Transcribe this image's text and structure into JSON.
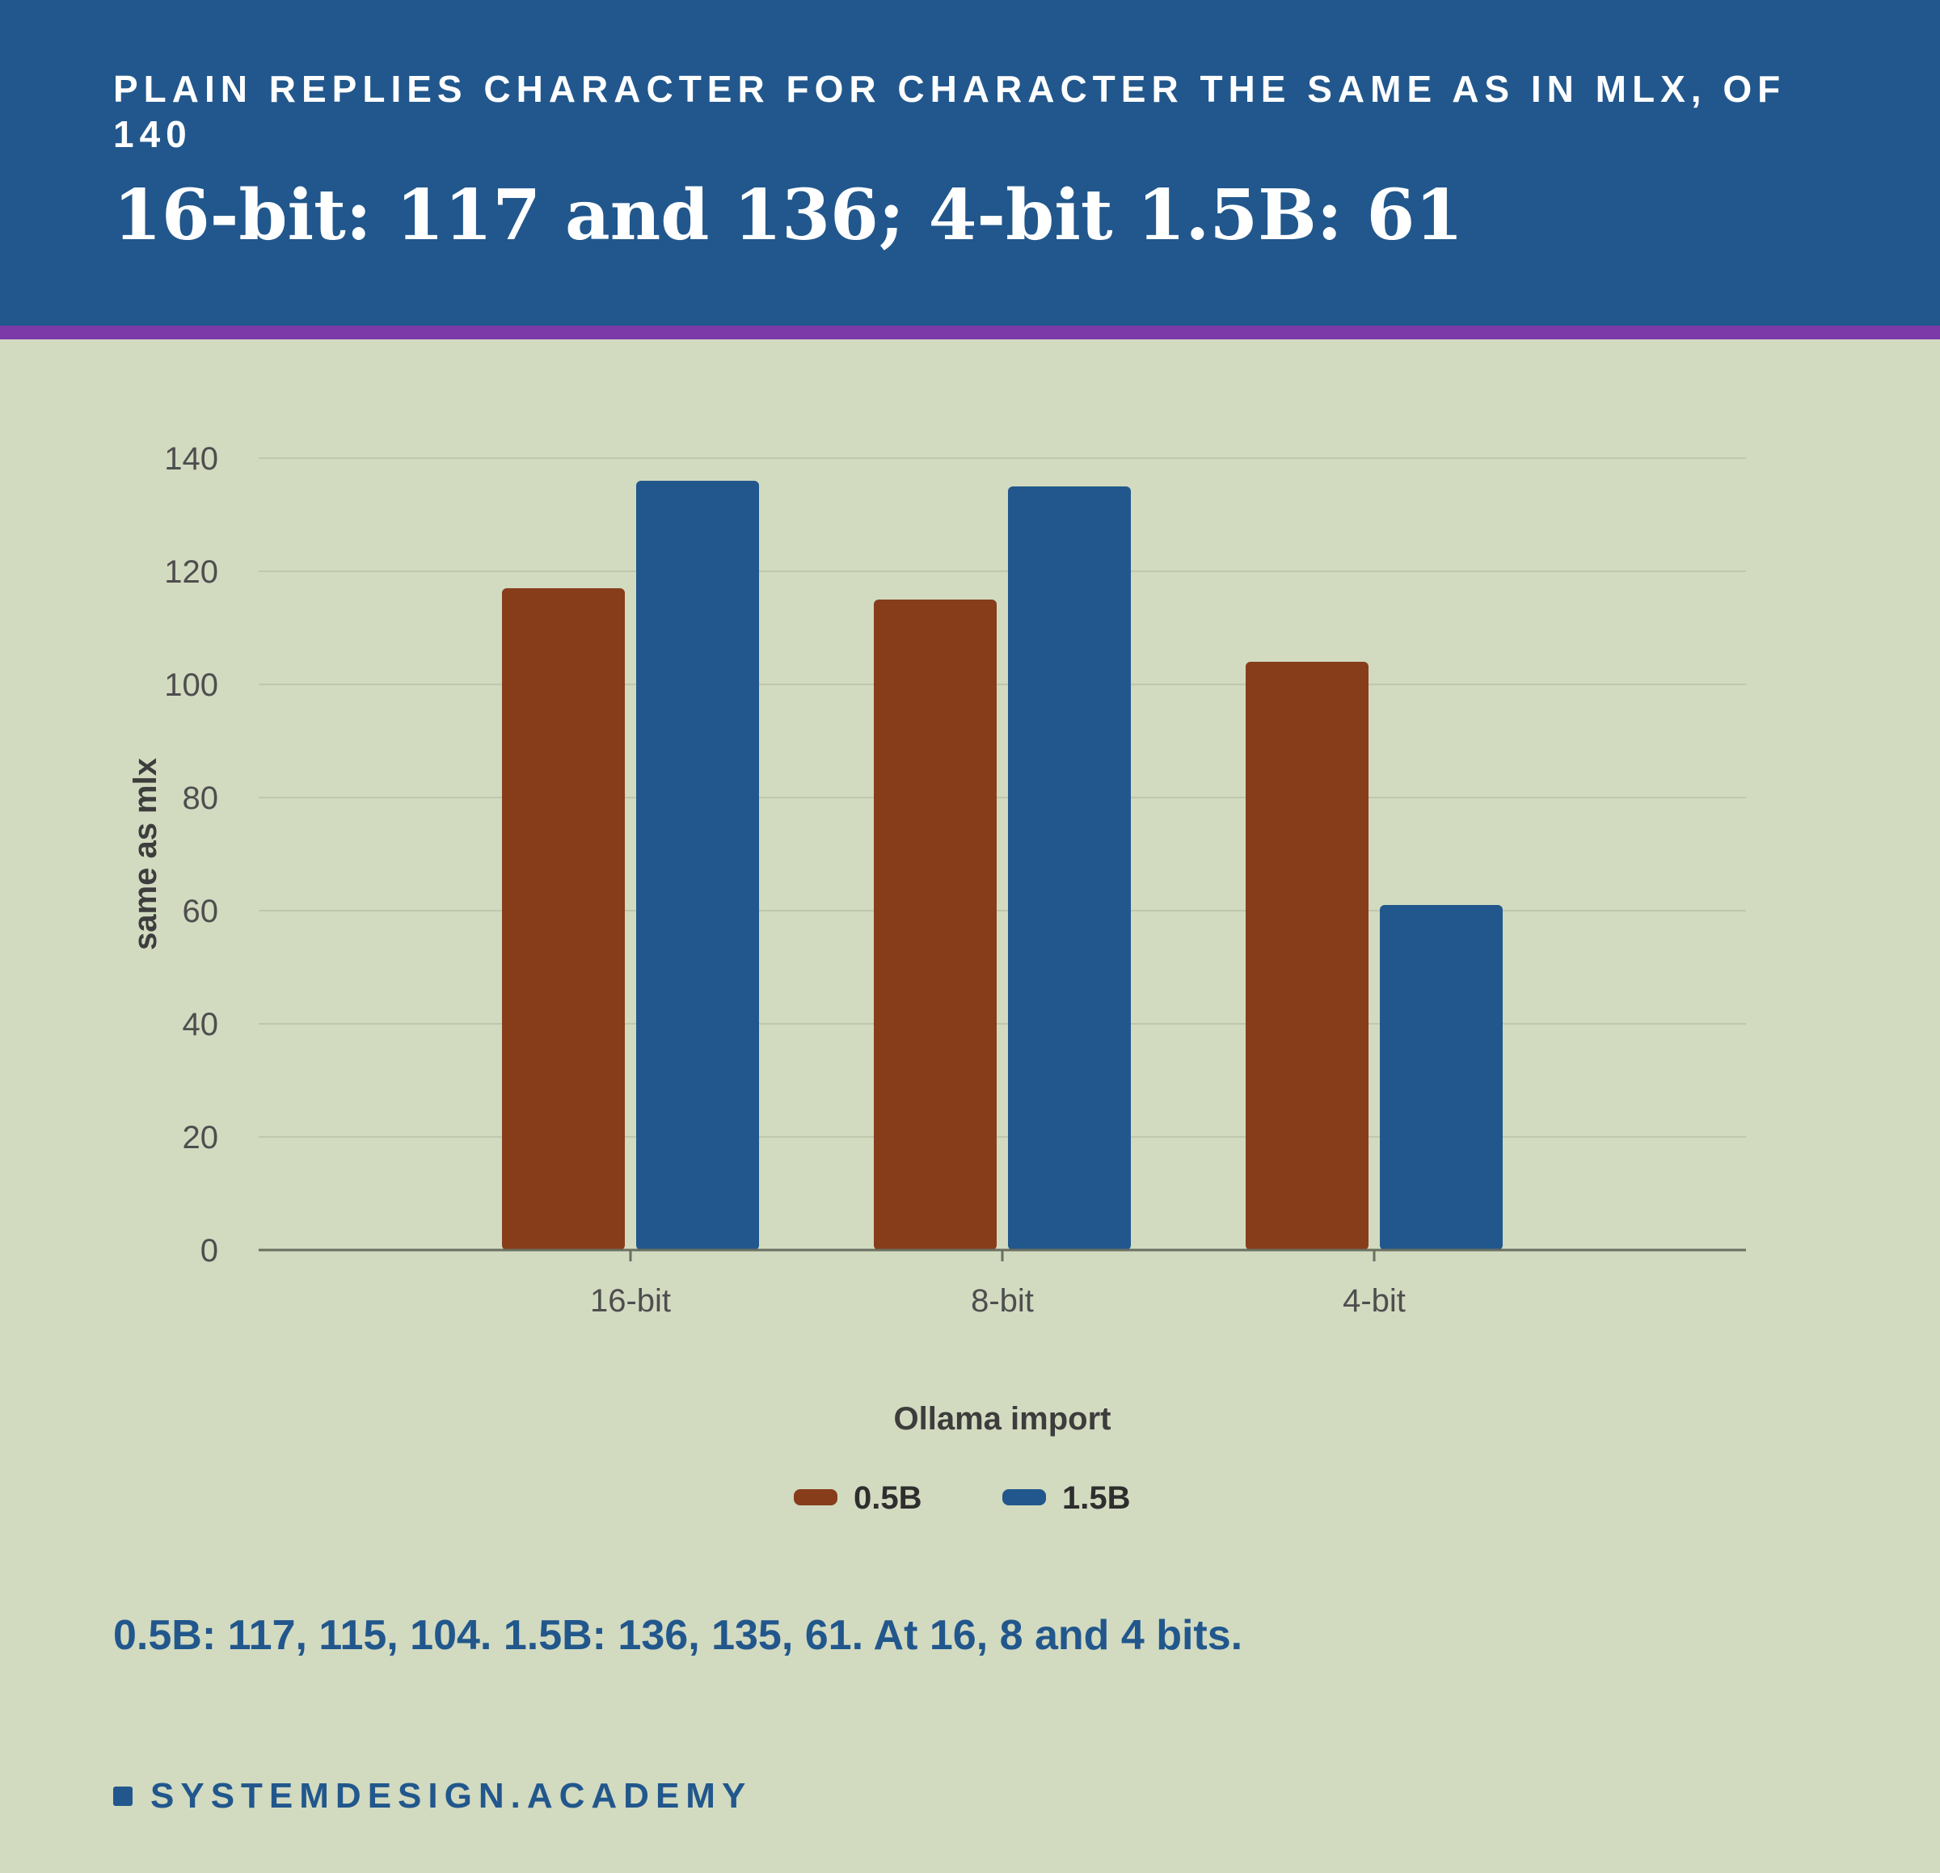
{
  "header": {
    "eyebrow": "PLAIN REPLIES CHARACTER FOR CHARACTER THE SAME AS IN MLX, OF 140",
    "headline": "16-bit: 117 and 136; 4-bit 1.5B: 61"
  },
  "chart_data": {
    "type": "bar",
    "categories": [
      "16-bit",
      "8-bit",
      "4-bit"
    ],
    "series": [
      {
        "name": "0.5B",
        "values": [
          117,
          115,
          104
        ],
        "color": "#873d1a"
      },
      {
        "name": "1.5B",
        "values": [
          136,
          135,
          61
        ],
        "color": "#21578c"
      }
    ],
    "xlabel": "Ollama import",
    "ylabel": "same as mlx",
    "ylim": [
      0,
      140
    ],
    "yticks": [
      0,
      20,
      40,
      60,
      80,
      100,
      120,
      140
    ],
    "grid": true,
    "legend_position": "bottom-center"
  },
  "caption": "0.5B: 117, 115, 104. 1.5B: 136, 135, 61. At 16, 8 and 4 bits.",
  "brand": {
    "name": "SYSTEMDESIGN.ACADEMY",
    "icon": "square-icon"
  },
  "colors": {
    "background": "#d2dac0",
    "header": "#21578c",
    "stripe": "#7b3aa8",
    "series_0_5b": "#873d1a",
    "series_1_5b": "#21578c"
  }
}
